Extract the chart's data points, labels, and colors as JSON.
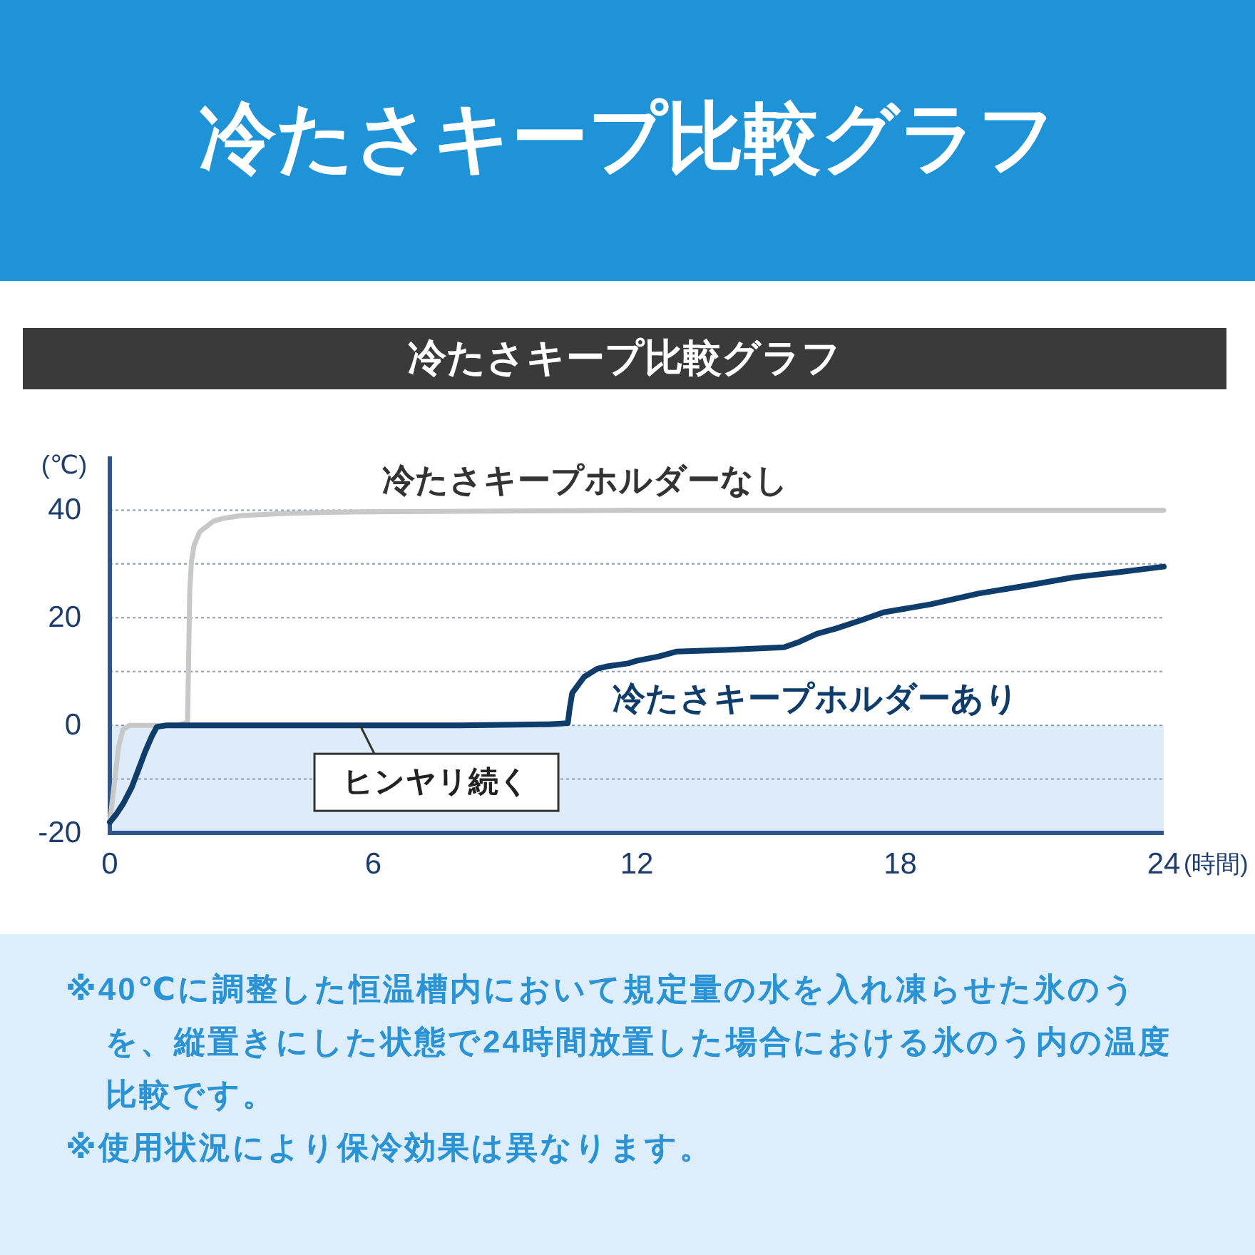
{
  "chart_data": {
    "type": "line",
    "title": "冷たさキープ比較グラフ",
    "subtitle": "冷たさキープ比較グラフ",
    "xlabel": "(時間)",
    "ylabel": "(℃)",
    "xlim": [
      0,
      24
    ],
    "xticks": [
      0,
      6,
      12,
      18,
      24
    ],
    "ylim": [
      -20,
      50
    ],
    "yticks": [
      -20,
      {
        "value": -10,
        "label": null
      },
      0,
      {
        "value": 10,
        "label": null
      },
      20,
      {
        "value": 30,
        "label": null
      },
      40
    ],
    "grid": "y",
    "bands": [
      {
        "axis": "y",
        "from": -20,
        "to": 0,
        "color": "#deecf9"
      }
    ],
    "series": [
      {
        "name": "冷たさキープホルダーなし",
        "color": "#c8c8c8",
        "x": [
          0,
          0.1,
          0.2,
          0.3,
          0.45,
          0.7,
          1.0,
          1.5,
          1.77,
          1.79,
          1.82,
          1.86,
          1.92,
          2.05,
          2.37,
          2.6,
          3.0,
          4.0,
          5.0,
          6.0,
          8,
          10,
          12,
          15,
          18,
          21,
          24
        ],
        "values": [
          -18,
          -11,
          -4,
          -0.8,
          0,
          0,
          0,
          0,
          0.5,
          10,
          25,
          30.5,
          33.5,
          36,
          38,
          38.5,
          39,
          39.4,
          39.6,
          39.7,
          39.8,
          39.9,
          40,
          40,
          40,
          40,
          40
        ]
      },
      {
        "name": "冷たさキープホルダーあり",
        "color": "#0f3d6b",
        "x": [
          0,
          0.15,
          0.31,
          0.5,
          0.64,
          0.8,
          0.96,
          1.07,
          1.3,
          2,
          4,
          6,
          8,
          10,
          10.43,
          10.47,
          10.53,
          10.8,
          11.1,
          11.35,
          11.8,
          12.0,
          12.5,
          12.9,
          14,
          15.35,
          15.7,
          16.1,
          16.54,
          17.1,
          17.62,
          18.7,
          19.78,
          20.9,
          21.94,
          23,
          24
        ],
        "values": [
          -18,
          -16.5,
          -14.5,
          -11.5,
          -8.5,
          -5,
          -2,
          -0.3,
          0,
          0,
          0,
          0,
          0,
          0.2,
          0.4,
          3,
          6,
          9,
          10.5,
          11,
          11.5,
          12,
          12.8,
          13.7,
          14,
          14.5,
          15.5,
          17,
          18,
          19.5,
          21,
          22.5,
          24.5,
          26,
          27.5,
          28.5,
          29.5
        ]
      }
    ],
    "annotations": [
      {
        "text": "ヒンヤリ続く",
        "x": 5.7,
        "y": 0
      },
      "※40℃に調整した恒温槽内において規定量の水を入れ凍らせた氷のうを、縦置きにした状態で24時間放置した場合における氷のう内の温度比較です。",
      "※使用状況により保冷効果は異なります。"
    ]
  }
}
